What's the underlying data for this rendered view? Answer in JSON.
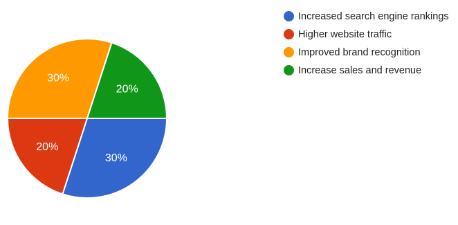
{
  "chart_data": {
    "type": "pie",
    "title": "",
    "slices": [
      {
        "label": "Increased search engine rankings",
        "value": 30,
        "value_label": "30%",
        "color": "#3366CC"
      },
      {
        "label": "Higher website traffic",
        "value": 20,
        "value_label": "20%",
        "color": "#DC3912"
      },
      {
        "label": "Improved brand recognition",
        "value": 30,
        "value_label": "30%",
        "color": "#FF9900"
      },
      {
        "label": "Increase sales and revenue",
        "value": 20,
        "value_label": "20%",
        "color": "#109618"
      }
    ],
    "legend_position": "right"
  }
}
